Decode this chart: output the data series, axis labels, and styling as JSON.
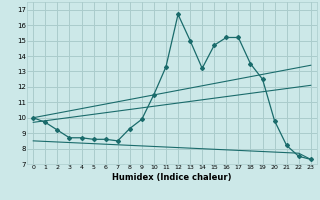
{
  "xlabel": "Humidex (Indice chaleur)",
  "bg_color": "#cce8e8",
  "grid_color": "#aacccc",
  "line_color": "#1a6b6b",
  "xlim": [
    -0.5,
    23.5
  ],
  "ylim": [
    7,
    17.5
  ],
  "xticks": [
    0,
    1,
    2,
    3,
    4,
    5,
    6,
    7,
    8,
    9,
    10,
    11,
    12,
    13,
    14,
    15,
    16,
    17,
    18,
    19,
    20,
    21,
    22,
    23
  ],
  "yticks": [
    7,
    8,
    9,
    10,
    11,
    12,
    13,
    14,
    15,
    16,
    17
  ],
  "series1_x": [
    0,
    1,
    2,
    3,
    4,
    5,
    6,
    7,
    8,
    9,
    10,
    11,
    12,
    13,
    14,
    15,
    16,
    17,
    18,
    19,
    20,
    21,
    22,
    23
  ],
  "series1_y": [
    10.0,
    9.7,
    9.2,
    8.7,
    8.7,
    8.6,
    8.6,
    8.5,
    9.3,
    9.9,
    11.5,
    13.3,
    16.7,
    15.0,
    13.2,
    14.7,
    15.2,
    15.2,
    13.5,
    12.5,
    9.8,
    8.2,
    7.5,
    7.3
  ],
  "series2_x": [
    0,
    23
  ],
  "series2_y": [
    9.7,
    12.1
  ],
  "series3_x": [
    0,
    23
  ],
  "series3_y": [
    10.0,
    13.4
  ],
  "series4_x": [
    0,
    22,
    23
  ],
  "series4_y": [
    8.5,
    7.7,
    7.3
  ]
}
